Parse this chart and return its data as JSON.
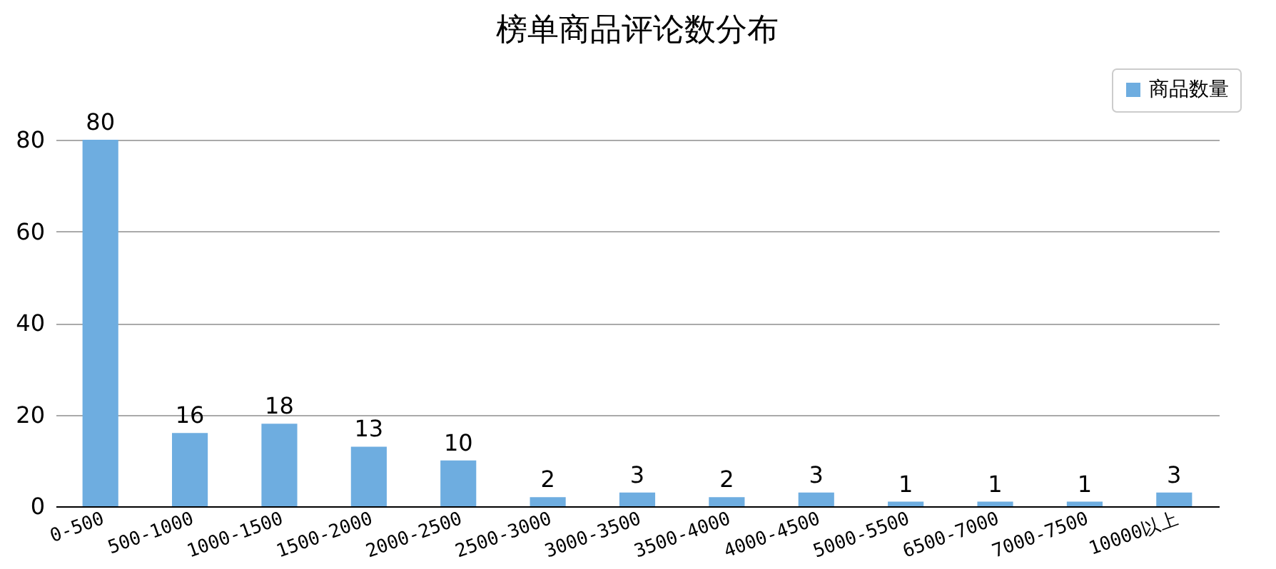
{
  "chart_data": {
    "type": "bar",
    "title": "榜单商品评论数分布",
    "categories": [
      "0-500",
      "500-1000",
      "1000-1500",
      "1500-2000",
      "2000-2500",
      "2500-3000",
      "3000-3500",
      "3500-4000",
      "4000-4500",
      "5000-5500",
      "6500-7000",
      "7000-7500",
      "10000以上"
    ],
    "series": [
      {
        "name": "商品数量",
        "color": "#6eade0",
        "values": [
          80,
          16,
          18,
          13,
          10,
          2,
          3,
          2,
          3,
          1,
          1,
          1,
          3
        ]
      }
    ],
    "ylim": [
      0,
      80
    ],
    "yticks": [
      0,
      20,
      40,
      60,
      80
    ],
    "grid": "y",
    "legend": "top right",
    "data_labels": true
  }
}
